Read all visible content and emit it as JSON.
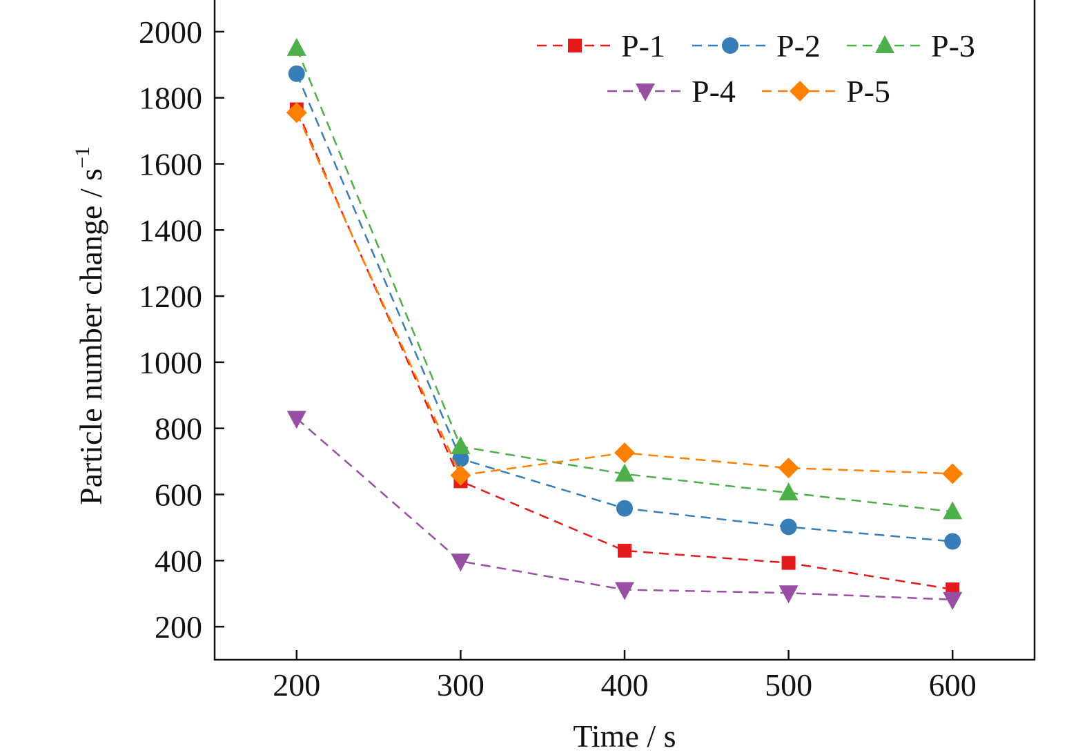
{
  "chart_data": {
    "type": "line",
    "title": "",
    "xlabel": "Time / s",
    "ylabel_main": "Particle number change / s",
    "ylabel_sup": "−1",
    "xlim": [
      150,
      650
    ],
    "ylim": [
      100,
      2100
    ],
    "x_ticks": [
      200,
      300,
      400,
      500,
      600
    ],
    "y_ticks": [
      200,
      400,
      600,
      800,
      1000,
      1200,
      1400,
      1600,
      1800,
      2000
    ],
    "x": [
      200,
      300,
      400,
      500,
      600
    ],
    "legend_location": "top-right",
    "line_style": "dashed",
    "series": [
      {
        "name": "P-1",
        "marker": "square",
        "color": "#e41a1c",
        "values": [
          1765,
          640,
          430,
          393,
          313
        ]
      },
      {
        "name": "P-2",
        "marker": "circle",
        "color": "#377eb8",
        "values": [
          1873,
          708,
          558,
          502,
          458
        ]
      },
      {
        "name": "P-3",
        "marker": "triangle-up",
        "color": "#4daf4a",
        "values": [
          1950,
          745,
          662,
          605,
          548
        ]
      },
      {
        "name": "P-4",
        "marker": "triangle-down",
        "color": "#984ea3",
        "values": [
          830,
          398,
          312,
          302,
          282
        ]
      },
      {
        "name": "P-5",
        "marker": "diamond",
        "color": "#ff7f00",
        "values": [
          1755,
          658,
          726,
          680,
          663
        ]
      }
    ]
  }
}
